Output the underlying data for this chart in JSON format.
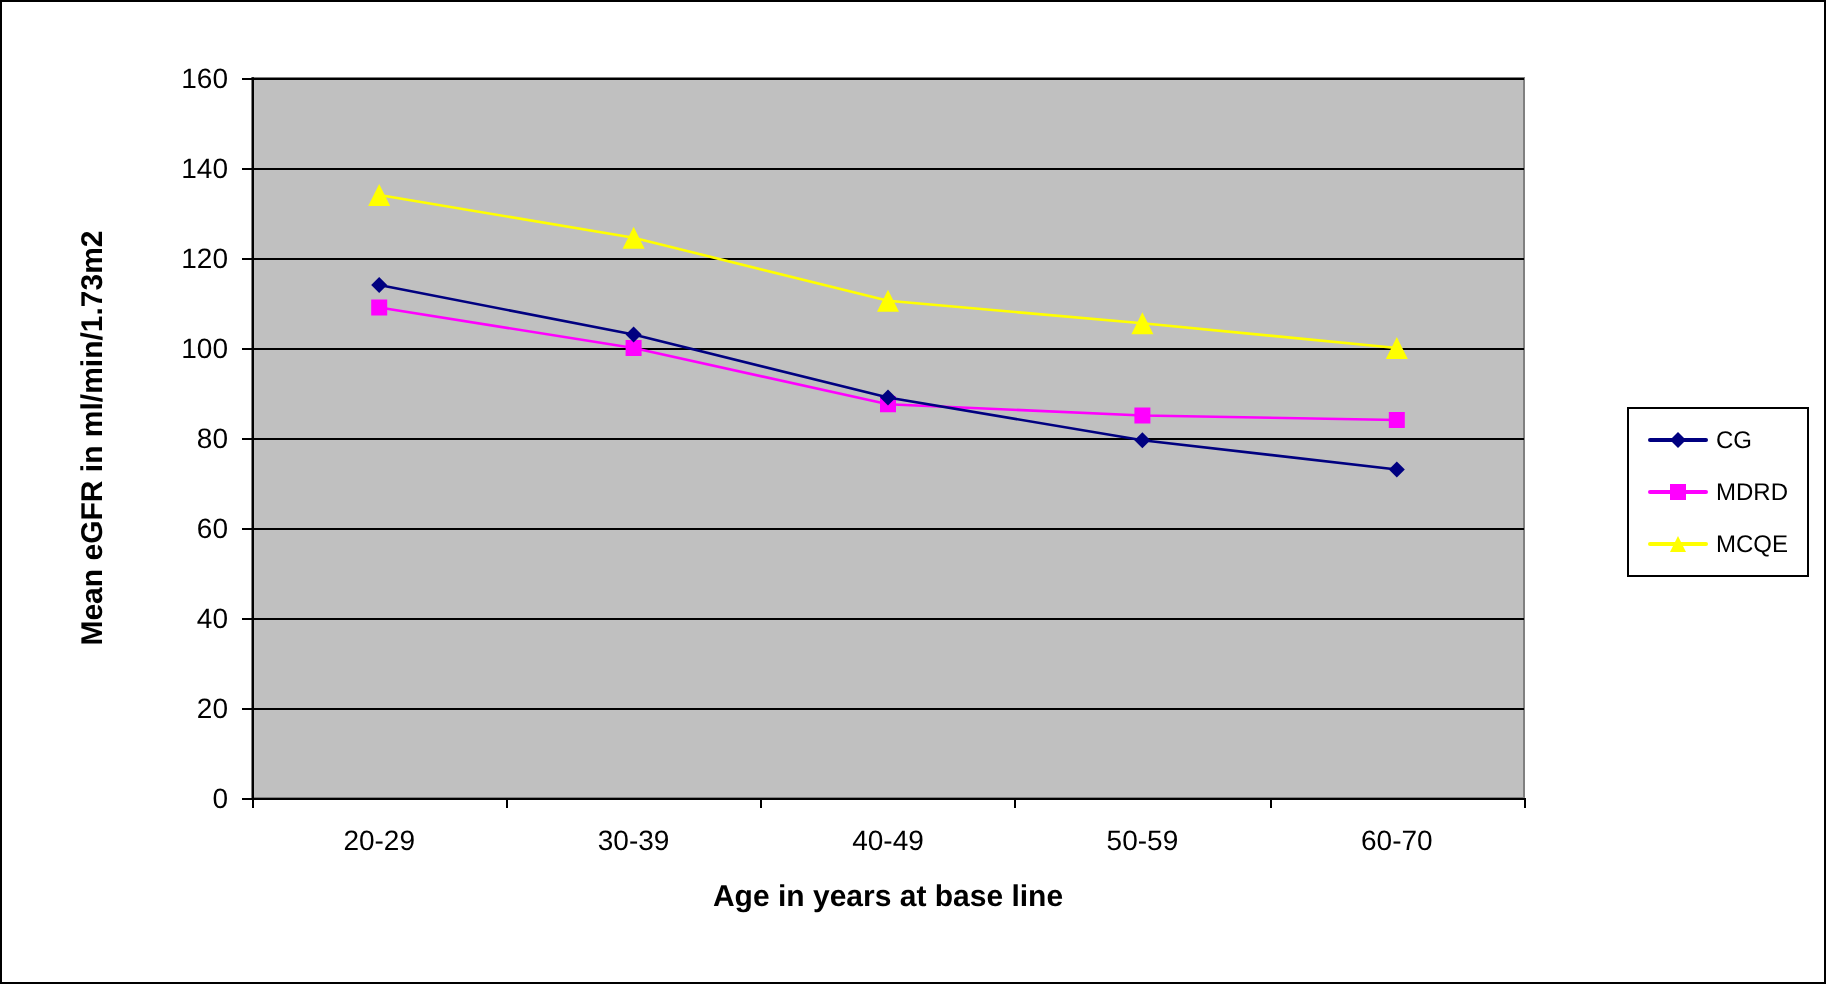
{
  "chart_data": {
    "type": "line",
    "xlabel": "Age in years at base line",
    "ylabel": "Mean eGFR in ml/min/1.73m2",
    "categories": [
      "20-29",
      "30-39",
      "40-49",
      "50-59",
      "60-70"
    ],
    "series": [
      {
        "name": "CG",
        "color": "#000080",
        "marker": "diamond",
        "values": [
          114,
          103,
          89,
          79.5,
          73
        ]
      },
      {
        "name": "MDRD",
        "color": "#ff00ff",
        "marker": "square",
        "values": [
          109,
          100,
          87.5,
          85,
          84
        ]
      },
      {
        "name": "MCQE",
        "color": "#ffff00",
        "marker": "triangle",
        "values": [
          134,
          124.5,
          110.5,
          105.5,
          100
        ]
      }
    ],
    "ylim": [
      0,
      160
    ],
    "yticks": [
      0,
      20,
      40,
      60,
      80,
      100,
      120,
      140,
      160
    ],
    "grid": "y",
    "legend": "right"
  }
}
